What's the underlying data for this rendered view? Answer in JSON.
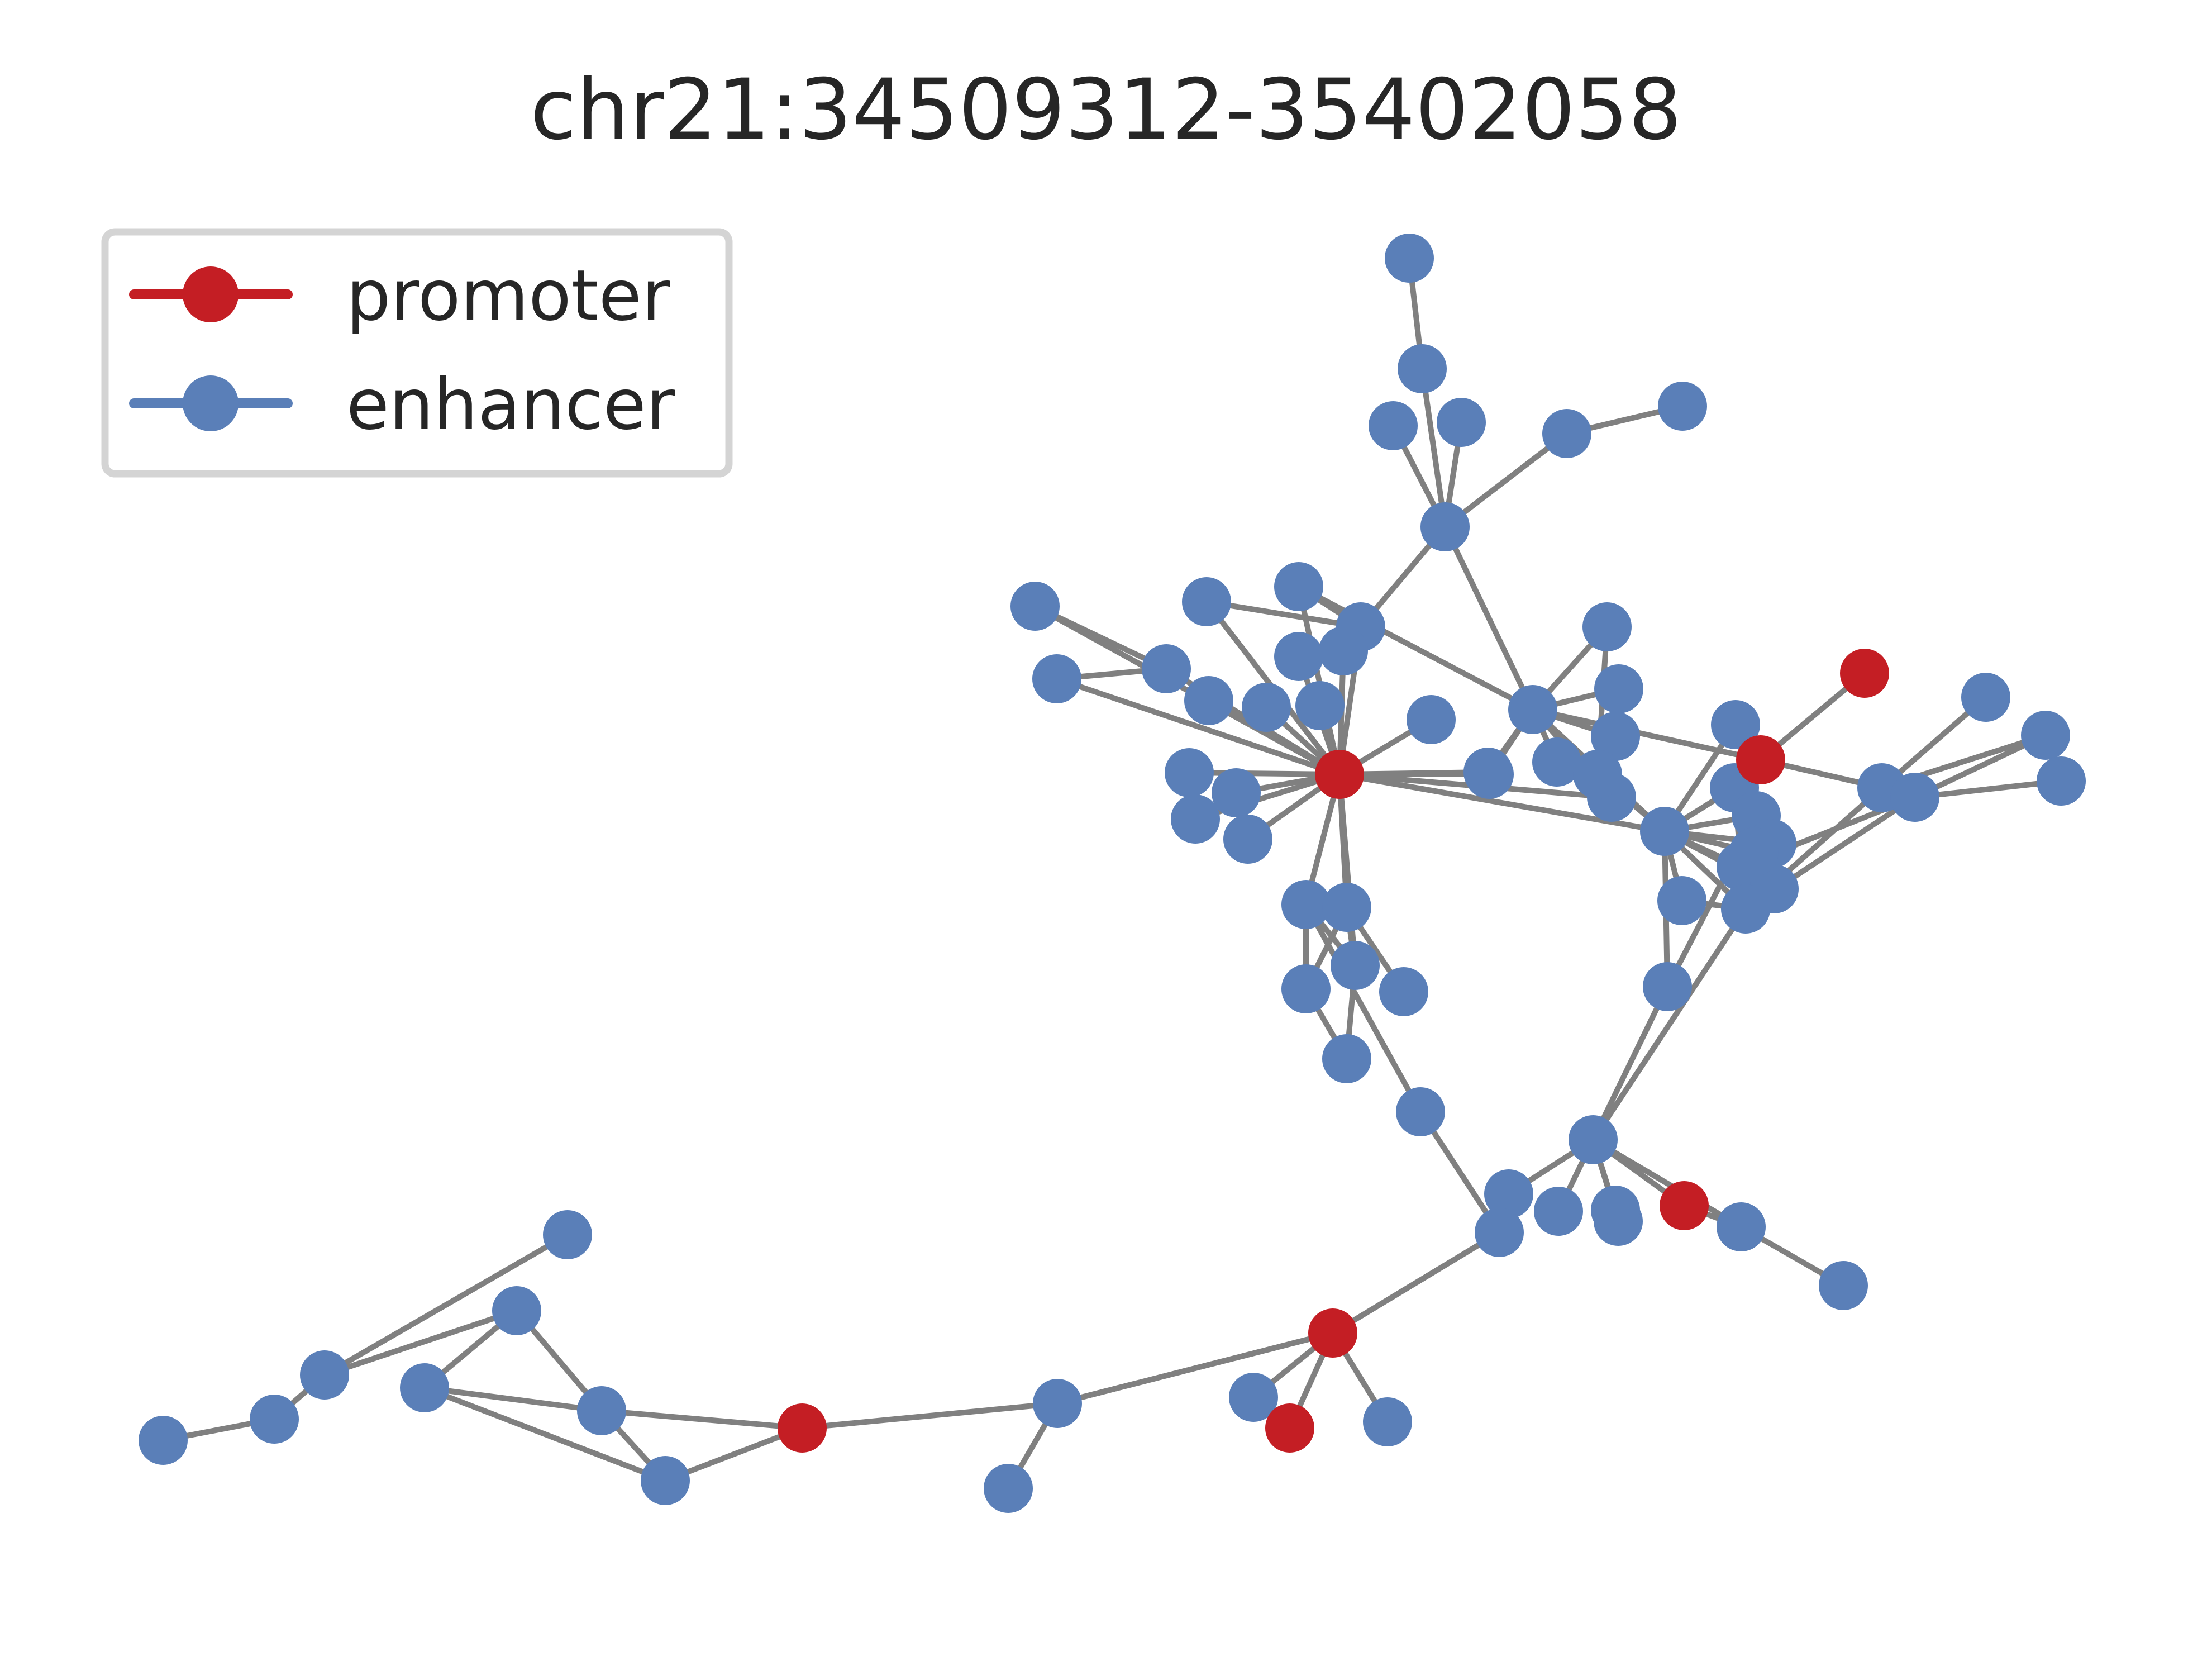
{
  "title": "chr21:34509312-35402058",
  "colors": {
    "promoter": "#c41e24",
    "enhancer": "#5a7fb8",
    "edge": "#808080"
  },
  "legend": [
    {
      "key": "promoter",
      "label": "promoter"
    },
    {
      "key": "enhancer",
      "label": "enhancer"
    }
  ],
  "nodes": [
    {
      "id": "p_hub",
      "type": "promoter"
    },
    {
      "id": "p_right",
      "type": "promoter"
    },
    {
      "id": "p_topr",
      "type": "promoter"
    },
    {
      "id": "p_mid",
      "type": "promoter"
    },
    {
      "id": "p_low",
      "type": "promoter"
    },
    {
      "id": "p_bot",
      "type": "promoter"
    },
    {
      "id": "p_left",
      "type": "promoter"
    },
    {
      "id": "e_top1",
      "type": "enhancer"
    },
    {
      "id": "e_top2",
      "type": "enhancer"
    },
    {
      "id": "e_top3",
      "type": "enhancer"
    },
    {
      "id": "e_top4",
      "type": "enhancer"
    },
    {
      "id": "e_j1",
      "type": "enhancer"
    },
    {
      "id": "e_tr1",
      "type": "enhancer"
    },
    {
      "id": "e_tr2",
      "type": "enhancer"
    },
    {
      "id": "e_c1",
      "type": "enhancer"
    },
    {
      "id": "e_c2",
      "type": "enhancer"
    },
    {
      "id": "e_c3",
      "type": "enhancer"
    },
    {
      "id": "e_c4",
      "type": "enhancer"
    },
    {
      "id": "e_c5",
      "type": "enhancer"
    },
    {
      "id": "e_c6",
      "type": "enhancer"
    },
    {
      "id": "e_c7",
      "type": "enhancer"
    },
    {
      "id": "e_c8",
      "type": "enhancer"
    },
    {
      "id": "e_c9",
      "type": "enhancer"
    },
    {
      "id": "e_c10",
      "type": "enhancer"
    },
    {
      "id": "e_c11",
      "type": "enhancer"
    },
    {
      "id": "e_c12",
      "type": "enhancer"
    },
    {
      "id": "e_c13",
      "type": "enhancer"
    },
    {
      "id": "e_c14",
      "type": "enhancer"
    },
    {
      "id": "e_c15",
      "type": "enhancer"
    },
    {
      "id": "e_c16",
      "type": "enhancer"
    },
    {
      "id": "e_c17",
      "type": "enhancer"
    },
    {
      "id": "e_h1",
      "type": "enhancer"
    },
    {
      "id": "e_h2",
      "type": "enhancer"
    },
    {
      "id": "e_h3",
      "type": "enhancer"
    },
    {
      "id": "e_h4",
      "type": "enhancer"
    },
    {
      "id": "e_h5",
      "type": "enhancer"
    },
    {
      "id": "e_h6",
      "type": "enhancer"
    },
    {
      "id": "e_h7",
      "type": "enhancer"
    },
    {
      "id": "e_h8",
      "type": "enhancer"
    },
    {
      "id": "e_h9",
      "type": "enhancer"
    },
    {
      "id": "e_h10",
      "type": "enhancer"
    },
    {
      "id": "e_h11",
      "type": "enhancer"
    },
    {
      "id": "e_h12",
      "type": "enhancer"
    },
    {
      "id": "e_r1",
      "type": "enhancer"
    },
    {
      "id": "e_r2",
      "type": "enhancer"
    },
    {
      "id": "e_r3",
      "type": "enhancer"
    },
    {
      "id": "e_r4",
      "type": "enhancer"
    },
    {
      "id": "e_r5",
      "type": "enhancer"
    },
    {
      "id": "e_r6",
      "type": "enhancer"
    },
    {
      "id": "e_r7",
      "type": "enhancer"
    },
    {
      "id": "e_r8",
      "type": "enhancer"
    },
    {
      "id": "e_r9",
      "type": "enhancer"
    },
    {
      "id": "e_r10",
      "type": "enhancer"
    },
    {
      "id": "e_r11",
      "type": "enhancer"
    },
    {
      "id": "e_fr1",
      "type": "enhancer"
    },
    {
      "id": "e_fr2",
      "type": "enhancer"
    },
    {
      "id": "e_fr3",
      "type": "enhancer"
    },
    {
      "id": "e_fr4",
      "type": "enhancer"
    },
    {
      "id": "e_fr5",
      "type": "enhancer"
    },
    {
      "id": "e_v1",
      "type": "enhancer"
    },
    {
      "id": "e_v2",
      "type": "enhancer"
    },
    {
      "id": "e_v3",
      "type": "enhancer"
    },
    {
      "id": "e_v4",
      "type": "enhancer"
    },
    {
      "id": "e_v5",
      "type": "enhancer"
    },
    {
      "id": "e_v6",
      "type": "enhancer"
    },
    {
      "id": "e_v7",
      "type": "enhancer"
    },
    {
      "id": "e_lh",
      "type": "enhancer"
    },
    {
      "id": "e_l1",
      "type": "enhancer"
    },
    {
      "id": "e_l2",
      "type": "enhancer"
    },
    {
      "id": "e_l3",
      "type": "enhancer"
    },
    {
      "id": "e_l4",
      "type": "enhancer"
    },
    {
      "id": "e_l5",
      "type": "enhancer"
    },
    {
      "id": "e_l6",
      "type": "enhancer"
    },
    {
      "id": "e_l7",
      "type": "enhancer"
    },
    {
      "id": "e_b1",
      "type": "enhancer"
    },
    {
      "id": "e_b2",
      "type": "enhancer"
    },
    {
      "id": "e_b3",
      "type": "enhancer"
    },
    {
      "id": "e_m1",
      "type": "enhancer"
    },
    {
      "id": "e_m2",
      "type": "enhancer"
    },
    {
      "id": "e_w1",
      "type": "enhancer"
    },
    {
      "id": "e_w2",
      "type": "enhancer"
    },
    {
      "id": "e_w3",
      "type": "enhancer"
    },
    {
      "id": "e_w4",
      "type": "enhancer"
    },
    {
      "id": "e_w5",
      "type": "enhancer"
    },
    {
      "id": "e_w6",
      "type": "enhancer"
    },
    {
      "id": "e_w7",
      "type": "enhancer"
    },
    {
      "id": "e_w8",
      "type": "enhancer"
    },
    {
      "id": "e_w9",
      "type": "enhancer"
    },
    {
      "id": "e_w10",
      "type": "enhancer"
    },
    {
      "id": "e_w11",
      "type": "enhancer"
    }
  ],
  "edges": [
    [
      "e_top1",
      "e_top2"
    ],
    [
      "e_top2",
      "e_j1"
    ],
    [
      "e_top3",
      "e_j1"
    ],
    [
      "e_top4",
      "e_j1"
    ],
    [
      "e_j1",
      "e_tr2"
    ],
    [
      "e_tr2",
      "e_tr1"
    ],
    [
      "e_j1",
      "e_c2"
    ],
    [
      "e_j1",
      "e_h1"
    ],
    [
      "e_c1",
      "p_hub"
    ],
    [
      "e_c2",
      "p_hub"
    ],
    [
      "e_c3",
      "p_hub"
    ],
    [
      "e_c4",
      "p_hub"
    ],
    [
      "e_c5",
      "p_hub"
    ],
    [
      "e_c6",
      "p_hub"
    ],
    [
      "e_c7",
      "p_hub"
    ],
    [
      "e_c8",
      "p_hub"
    ],
    [
      "e_c9",
      "p_hub"
    ],
    [
      "e_c10",
      "p_hub"
    ],
    [
      "e_c11",
      "p_hub"
    ],
    [
      "e_c12",
      "p_hub"
    ],
    [
      "e_c13",
      "p_hub"
    ],
    [
      "e_c14",
      "p_hub"
    ],
    [
      "e_c15",
      "p_hub"
    ],
    [
      "e_c16",
      "p_hub"
    ],
    [
      "e_c17",
      "p_hub"
    ],
    [
      "e_c1",
      "e_c6"
    ],
    [
      "e_c6",
      "e_c7"
    ],
    [
      "e_c3",
      "e_c2"
    ],
    [
      "e_c5",
      "e_c2"
    ],
    [
      "e_c4",
      "e_c2"
    ],
    [
      "e_c4",
      "e_h1"
    ],
    [
      "e_c5",
      "e_c8"
    ],
    [
      "e_h1",
      "e_c17"
    ],
    [
      "e_h1",
      "e_h2"
    ],
    [
      "e_h1",
      "e_h3"
    ],
    [
      "e_h1",
      "e_h4"
    ],
    [
      "e_h1",
      "e_h5"
    ],
    [
      "e_h1",
      "e_h6"
    ],
    [
      "e_h1",
      "e_h7"
    ],
    [
      "e_h1",
      "p_right"
    ],
    [
      "e_h1",
      "e_h8"
    ],
    [
      "e_h1",
      "e_h9"
    ],
    [
      "p_hub",
      "e_h7"
    ],
    [
      "p_hub",
      "e_h8"
    ],
    [
      "p_hub",
      "e_h6"
    ],
    [
      "e_h2",
      "e_h9"
    ],
    [
      "e_h8",
      "e_h9"
    ],
    [
      "p_right",
      "p_topr"
    ],
    [
      "p_right",
      "e_fr1"
    ],
    [
      "p_right",
      "e_r1"
    ],
    [
      "e_r1",
      "e_h8"
    ],
    [
      "e_h8",
      "e_r2"
    ],
    [
      "e_h8",
      "e_r3"
    ],
    [
      "e_h8",
      "e_r4"
    ],
    [
      "e_h8",
      "e_r5"
    ],
    [
      "e_h8",
      "e_r6"
    ],
    [
      "e_r2",
      "e_r5"
    ],
    [
      "e_r3",
      "e_r6"
    ],
    [
      "e_h8",
      "e_r9"
    ],
    [
      "e_r9",
      "e_r8"
    ],
    [
      "e_r7",
      "e_r9"
    ],
    [
      "e_r7",
      "e_r8"
    ],
    [
      "e_r7",
      "e_fr1"
    ],
    [
      "e_r7",
      "e_fr5"
    ],
    [
      "e_r7",
      "e_r4"
    ],
    [
      "e_r7",
      "e_r5"
    ],
    [
      "e_fr1",
      "e_fr2"
    ],
    [
      "e_fr1",
      "e_fr3"
    ],
    [
      "e_fr5",
      "e_fr3"
    ],
    [
      "e_fr5",
      "e_fr4"
    ],
    [
      "e_fr5",
      "e_r5"
    ],
    [
      "e_r3",
      "e_r10"
    ],
    [
      "e_r9",
      "e_r10"
    ],
    [
      "e_r10",
      "e_lh"
    ],
    [
      "e_r7",
      "e_lh"
    ],
    [
      "e_r11",
      "e_h8"
    ],
    [
      "p_hub",
      "e_v1"
    ],
    [
      "p_hub",
      "e_v2"
    ],
    [
      "p_hub",
      "e_v3"
    ],
    [
      "e_v1",
      "e_v3"
    ],
    [
      "e_v2",
      "e_v3"
    ],
    [
      "e_v1",
      "e_v4"
    ],
    [
      "e_v2",
      "e_v4"
    ],
    [
      "e_v2",
      "e_v5"
    ],
    [
      "e_v3",
      "e_v6"
    ],
    [
      "e_v4",
      "e_v6"
    ],
    [
      "e_v1",
      "e_v7"
    ],
    [
      "e_v7",
      "e_b2"
    ],
    [
      "e_b2",
      "e_b3"
    ],
    [
      "e_b3",
      "p_mid"
    ],
    [
      "e_lh",
      "e_b1"
    ],
    [
      "e_lh",
      "e_l1"
    ],
    [
      "e_lh",
      "e_l2"
    ],
    [
      "e_lh",
      "e_l3"
    ],
    [
      "e_lh",
      "p_low"
    ],
    [
      "e_lh",
      "e_l5"
    ],
    [
      "e_lh",
      "e_l6"
    ],
    [
      "p_low",
      "e_l6"
    ],
    [
      "e_l6",
      "e_l7"
    ],
    [
      "p_mid",
      "e_m1"
    ],
    [
      "p_mid",
      "p_bot"
    ],
    [
      "p_mid",
      "e_m2"
    ],
    [
      "p_mid",
      "e_b2"
    ],
    [
      "p_mid",
      "e_w1"
    ],
    [
      "p_mid",
      "e_w2"
    ],
    [
      "e_w2",
      "e_w3"
    ],
    [
      "e_w1",
      "p_left"
    ],
    [
      "p_left",
      "e_w4"
    ],
    [
      "p_left",
      "e_w5"
    ],
    [
      "e_w4",
      "e_w5"
    ],
    [
      "e_w4",
      "e_w6"
    ],
    [
      "e_w4",
      "e_w7"
    ],
    [
      "e_w6",
      "e_w7"
    ],
    [
      "e_w6",
      "e_w8"
    ],
    [
      "e_w8",
      "e_w9"
    ],
    [
      "e_w9",
      "e_w10"
    ],
    [
      "e_w7",
      "e_w11"
    ],
    [
      "e_w5",
      "e_w11"
    ]
  ]
}
